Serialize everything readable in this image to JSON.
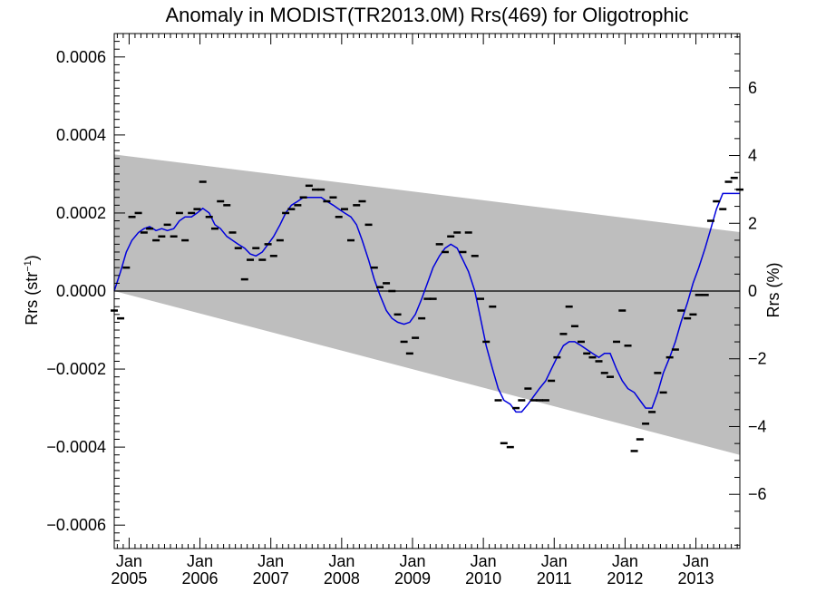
{
  "chart_data": {
    "type": "line",
    "title": "Anomaly in MODIST(TR2013.0M) Rrs(469) for Oligotrophic",
    "ylabel_left": {
      "main": "Rrs (str",
      "sup": "−1",
      "tail": ")"
    },
    "ylabel_right": "Rrs (%)",
    "xlim": [
      2004.79,
      2013.62
    ],
    "ylim_left": [
      -0.00066,
      0.00066
    ],
    "ylim_right": [
      -7.6,
      7.6
    ],
    "grid": false,
    "x_ticks": [
      {
        "x": 2005.0,
        "top": "Jan",
        "bottom": "2005"
      },
      {
        "x": 2006.0,
        "top": "Jan",
        "bottom": "2006"
      },
      {
        "x": 2007.0,
        "top": "Jan",
        "bottom": "2007"
      },
      {
        "x": 2008.0,
        "top": "Jan",
        "bottom": "2008"
      },
      {
        "x": 2009.0,
        "top": "Jan",
        "bottom": "2009"
      },
      {
        "x": 2010.0,
        "top": "Jan",
        "bottom": "2010"
      },
      {
        "x": 2011.0,
        "top": "Jan",
        "bottom": "2011"
      },
      {
        "x": 2012.0,
        "top": "Jan",
        "bottom": "2012"
      },
      {
        "x": 2013.0,
        "top": "Jan",
        "bottom": "2013"
      }
    ],
    "y_ticks_left": [
      {
        "v": 0.0006,
        "label": "0.0006"
      },
      {
        "v": 0.0004,
        "label": "0.0004"
      },
      {
        "v": 0.0002,
        "label": "0.0002"
      },
      {
        "v": 0.0,
        "label": "0.0000"
      },
      {
        "v": -0.0002,
        "label": "−0.0002"
      },
      {
        "v": -0.0004,
        "label": "−0.0004"
      },
      {
        "v": -0.0006,
        "label": "−0.0006"
      }
    ],
    "y_ticks_right": [
      {
        "v": 6,
        "label": "6"
      },
      {
        "v": 4,
        "label": "4"
      },
      {
        "v": 2,
        "label": "2"
      },
      {
        "v": 0,
        "label": "0"
      },
      {
        "v": -2,
        "label": "−2"
      },
      {
        "v": -4,
        "label": "−4"
      },
      {
        "v": -6,
        "label": "−6"
      }
    ],
    "uncertainty_band": {
      "color": "#bebebe",
      "upper": [
        [
          2004.79,
          0.00035
        ],
        [
          2013.62,
          0.000151
        ]
      ],
      "lower": [
        [
          2004.79,
          0.0
        ],
        [
          2013.62,
          -0.00042
        ]
      ]
    },
    "zero_line": {
      "y": 0.0,
      "color": "#000000"
    },
    "series": [
      {
        "kind": "monthly",
        "marker": "dash",
        "color": "#000000",
        "points": [
          [
            2004.79,
            -5e-05
          ],
          [
            2004.88,
            -7e-05
          ],
          [
            2004.96,
            6e-05
          ],
          [
            2005.04,
            0.00019
          ],
          [
            2005.13,
            0.0002
          ],
          [
            2005.21,
            0.00015
          ],
          [
            2005.29,
            0.00016
          ],
          [
            2005.38,
            0.00013
          ],
          [
            2005.46,
            0.00014
          ],
          [
            2005.54,
            0.00017
          ],
          [
            2005.63,
            0.00014
          ],
          [
            2005.71,
            0.0002
          ],
          [
            2005.79,
            0.00013
          ],
          [
            2005.88,
            0.0002
          ],
          [
            2005.96,
            0.00021
          ],
          [
            2006.04,
            0.00028
          ],
          [
            2006.13,
            0.00019
          ],
          [
            2006.21,
            0.00016
          ],
          [
            2006.29,
            0.00023
          ],
          [
            2006.38,
            0.00022
          ],
          [
            2006.46,
            0.00015
          ],
          [
            2006.54,
            0.00011
          ],
          [
            2006.63,
            3e-05
          ],
          [
            2006.71,
            8e-05
          ],
          [
            2006.79,
            0.00011
          ],
          [
            2006.88,
            8e-05
          ],
          [
            2006.96,
            0.00012
          ],
          [
            2007.04,
            9e-05
          ],
          [
            2007.13,
            0.00013
          ],
          [
            2007.21,
            0.0002
          ],
          [
            2007.29,
            0.00021
          ],
          [
            2007.38,
            0.00022
          ],
          [
            2007.46,
            0.00024
          ],
          [
            2007.54,
            0.00027
          ],
          [
            2007.63,
            0.00026
          ],
          [
            2007.71,
            0.00026
          ],
          [
            2007.79,
            0.00023
          ],
          [
            2007.88,
            0.00024
          ],
          [
            2007.96,
            0.00019
          ],
          [
            2008.04,
            0.00021
          ],
          [
            2008.13,
            0.00013
          ],
          [
            2008.21,
            0.00022
          ],
          [
            2008.29,
            0.00023
          ],
          [
            2008.38,
            0.00017
          ],
          [
            2008.46,
            6e-05
          ],
          [
            2008.54,
            1e-05
          ],
          [
            2008.63,
            2e-05
          ],
          [
            2008.71,
            0.0
          ],
          [
            2008.79,
            -6e-05
          ],
          [
            2008.88,
            -0.00013
          ],
          [
            2008.96,
            -0.00016
          ],
          [
            2009.04,
            -0.00012
          ],
          [
            2009.13,
            -7e-05
          ],
          [
            2009.21,
            -2e-05
          ],
          [
            2009.29,
            -2e-05
          ],
          [
            2009.38,
            0.00012
          ],
          [
            2009.46,
            0.0001
          ],
          [
            2009.54,
            0.00014
          ],
          [
            2009.63,
            0.00015
          ],
          [
            2009.71,
            0.0001
          ],
          [
            2009.79,
            0.00015
          ],
          [
            2009.88,
            9e-05
          ],
          [
            2009.96,
            -2e-05
          ],
          [
            2010.04,
            -0.00013
          ],
          [
            2010.13,
            -4e-05
          ],
          [
            2010.21,
            -0.00028
          ],
          [
            2010.29,
            -0.00039
          ],
          [
            2010.38,
            -0.0004
          ],
          [
            2010.46,
            -0.0003
          ],
          [
            2010.54,
            -0.00028
          ],
          [
            2010.63,
            -0.00025
          ],
          [
            2010.71,
            -0.00028
          ],
          [
            2010.79,
            -0.00028
          ],
          [
            2010.88,
            -0.00028
          ],
          [
            2010.96,
            -0.00023
          ],
          [
            2011.04,
            -0.00017
          ],
          [
            2011.13,
            -0.00011
          ],
          [
            2011.21,
            -4e-05
          ],
          [
            2011.29,
            -9e-05
          ],
          [
            2011.38,
            -0.00013
          ],
          [
            2011.46,
            -0.00016
          ],
          [
            2011.54,
            -0.00017
          ],
          [
            2011.63,
            -0.00018
          ],
          [
            2011.71,
            -0.00021
          ],
          [
            2011.79,
            -0.00022
          ],
          [
            2011.88,
            -0.00013
          ],
          [
            2011.96,
            -5e-05
          ],
          [
            2012.04,
            -0.00014
          ],
          [
            2012.13,
            -0.00041
          ],
          [
            2012.21,
            -0.00038
          ],
          [
            2012.29,
            -0.00034
          ],
          [
            2012.38,
            -0.00031
          ],
          [
            2012.46,
            -0.00021
          ],
          [
            2012.54,
            -0.00026
          ],
          [
            2012.63,
            -0.00017
          ],
          [
            2012.71,
            -0.00015
          ],
          [
            2012.79,
            -5e-05
          ],
          [
            2012.88,
            -7e-05
          ],
          [
            2012.96,
            -6e-05
          ],
          [
            2013.04,
            -1e-05
          ],
          [
            2013.13,
            -1e-05
          ],
          [
            2013.21,
            0.00018
          ],
          [
            2013.29,
            0.00023
          ],
          [
            2013.38,
            0.00021
          ],
          [
            2013.46,
            0.00028
          ],
          [
            2013.54,
            0.00029
          ],
          [
            2013.62,
            0.00026
          ]
        ]
      },
      {
        "kind": "smoothed",
        "color": "#0000dd",
        "points": [
          [
            2004.79,
            0.0
          ],
          [
            2004.88,
            5e-05
          ],
          [
            2004.96,
            0.0001
          ],
          [
            2005.04,
            0.00013
          ],
          [
            2005.13,
            0.00015
          ],
          [
            2005.21,
            0.00016
          ],
          [
            2005.29,
            0.000165
          ],
          [
            2005.38,
            0.000155
          ],
          [
            2005.46,
            0.00016
          ],
          [
            2005.54,
            0.000155
          ],
          [
            2005.63,
            0.00016
          ],
          [
            2005.71,
            0.00018
          ],
          [
            2005.79,
            0.00019
          ],
          [
            2005.88,
            0.00019
          ],
          [
            2005.96,
            0.0002
          ],
          [
            2006.04,
            0.000212
          ],
          [
            2006.13,
            0.0002
          ],
          [
            2006.21,
            0.00017
          ],
          [
            2006.29,
            0.00016
          ],
          [
            2006.38,
            0.00014
          ],
          [
            2006.46,
            0.00013
          ],
          [
            2006.54,
            0.00012
          ],
          [
            2006.63,
            0.00011
          ],
          [
            2006.71,
            9.5e-05
          ],
          [
            2006.79,
            9e-05
          ],
          [
            2006.88,
            0.0001
          ],
          [
            2006.96,
            0.00012
          ],
          [
            2007.04,
            0.00014
          ],
          [
            2007.13,
            0.00017
          ],
          [
            2007.21,
            0.0002
          ],
          [
            2007.29,
            0.00022
          ],
          [
            2007.38,
            0.00023
          ],
          [
            2007.46,
            0.00024
          ],
          [
            2007.54,
            0.00024
          ],
          [
            2007.63,
            0.00024
          ],
          [
            2007.71,
            0.00024
          ],
          [
            2007.79,
            0.00023
          ],
          [
            2007.88,
            0.00022
          ],
          [
            2007.96,
            0.00021
          ],
          [
            2008.04,
            0.0002
          ],
          [
            2008.13,
            0.00019
          ],
          [
            2008.21,
            0.00017
          ],
          [
            2008.29,
            0.00013
          ],
          [
            2008.38,
            8e-05
          ],
          [
            2008.46,
            3e-05
          ],
          [
            2008.54,
            -1e-05
          ],
          [
            2008.63,
            -5e-05
          ],
          [
            2008.71,
            -7e-05
          ],
          [
            2008.79,
            -8e-05
          ],
          [
            2008.88,
            -8.5e-05
          ],
          [
            2008.96,
            -8e-05
          ],
          [
            2009.04,
            -6e-05
          ],
          [
            2009.13,
            -2e-05
          ],
          [
            2009.21,
            2e-05
          ],
          [
            2009.29,
            6e-05
          ],
          [
            2009.38,
            9e-05
          ],
          [
            2009.46,
            0.00011
          ],
          [
            2009.54,
            0.00012
          ],
          [
            2009.63,
            0.00011
          ],
          [
            2009.71,
            8e-05
          ],
          [
            2009.79,
            5e-05
          ],
          [
            2009.88,
            0.0
          ],
          [
            2009.96,
            -7e-05
          ],
          [
            2010.04,
            -0.00014
          ],
          [
            2010.13,
            -0.0002
          ],
          [
            2010.21,
            -0.00025
          ],
          [
            2010.29,
            -0.00028
          ],
          [
            2010.38,
            -0.00029
          ],
          [
            2010.46,
            -0.00031
          ],
          [
            2010.54,
            -0.00031
          ],
          [
            2010.63,
            -0.00029
          ],
          [
            2010.71,
            -0.00027
          ],
          [
            2010.79,
            -0.00025
          ],
          [
            2010.88,
            -0.00023
          ],
          [
            2010.96,
            -0.0002
          ],
          [
            2011.04,
            -0.00017
          ],
          [
            2011.13,
            -0.00014
          ],
          [
            2011.21,
            -0.00013
          ],
          [
            2011.29,
            -0.00013
          ],
          [
            2011.38,
            -0.00014
          ],
          [
            2011.46,
            -0.00015
          ],
          [
            2011.54,
            -0.00016
          ],
          [
            2011.63,
            -0.00017
          ],
          [
            2011.71,
            -0.00016
          ],
          [
            2011.79,
            -0.00016
          ],
          [
            2011.88,
            -0.0002
          ],
          [
            2011.96,
            -0.00023
          ],
          [
            2012.04,
            -0.00025
          ],
          [
            2012.13,
            -0.00026
          ],
          [
            2012.21,
            -0.00028
          ],
          [
            2012.29,
            -0.0003
          ],
          [
            2012.38,
            -0.0003
          ],
          [
            2012.46,
            -0.00026
          ],
          [
            2012.54,
            -0.00021
          ],
          [
            2012.63,
            -0.00017
          ],
          [
            2012.71,
            -0.00013
          ],
          [
            2012.79,
            -8e-05
          ],
          [
            2012.88,
            -3e-05
          ],
          [
            2012.96,
            2e-05
          ],
          [
            2013.04,
            6e-05
          ],
          [
            2013.13,
            0.00011
          ],
          [
            2013.21,
            0.00016
          ],
          [
            2013.29,
            0.00021
          ],
          [
            2013.38,
            0.00025
          ],
          [
            2013.46,
            0.00025
          ],
          [
            2013.54,
            0.00025
          ],
          [
            2013.62,
            0.00025
          ]
        ]
      }
    ]
  }
}
